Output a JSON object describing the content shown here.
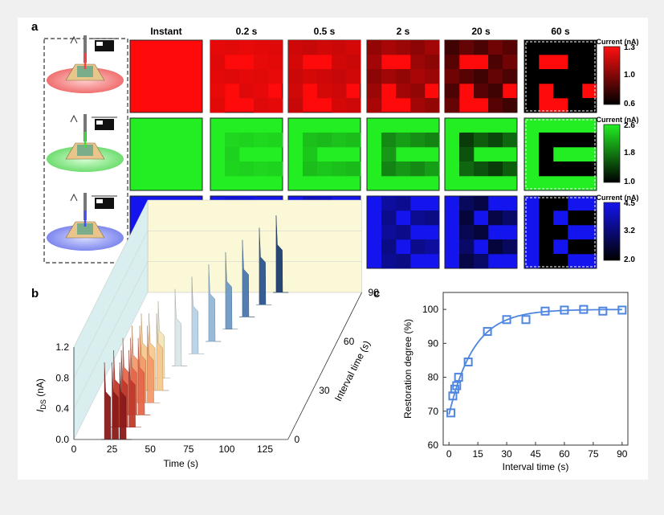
{
  "panel_a": {
    "label": "a",
    "columns": [
      "Instant",
      "0.2 s",
      "0.5 s",
      "2 s",
      "20 s",
      "60 s"
    ],
    "rows": [
      {
        "color_name": "red",
        "base": "#ff0a0a",
        "colorbar": {
          "title": "Current (nA)",
          "ticks": [
            "1.3",
            "1.0",
            "0.6"
          ],
          "top": "#ff1010",
          "bottom": "#000000"
        }
      },
      {
        "color_name": "green",
        "base": "#22ee22",
        "colorbar": {
          "title": "Current (nA)",
          "ticks": [
            "2.6",
            "1.8",
            "1.0"
          ],
          "top": "#22ee22",
          "bottom": "#000000"
        }
      },
      {
        "color_name": "blue",
        "base": "#1414ee",
        "colorbar": {
          "title": "Current (nA)",
          "ticks": [
            "4.5",
            "3.2",
            "2.0"
          ],
          "top": "#1414ee",
          "bottom": "#000000"
        }
      }
    ]
  },
  "chart_data": [
    {
      "panel": "b",
      "type": "area",
      "title": "",
      "xlabel": "Time (s)",
      "ylabel": "IDS (nA)",
      "ylabel_main": "I",
      "ylabel_sub": "DS",
      "ylabel_unit": " (nA)",
      "zlabel": "Interval time (s)",
      "xticks": [
        "0",
        "25",
        "50",
        "75",
        "100",
        "125"
      ],
      "yticks": [
        "0.0",
        "0.4",
        "0.8",
        "1.2"
      ],
      "zticks": [
        "0",
        "30",
        "60",
        "90"
      ],
      "xlim": [
        0,
        140
      ],
      "ylim": [
        0,
        1.2
      ],
      "zlim": [
        0,
        90
      ],
      "series_colors": [
        "#8b1a1a",
        "#c0392b",
        "#e8664a",
        "#f49a6a",
        "#f7c98f",
        "#f3e6b8",
        "#dbe6e8",
        "#b8d2e6",
        "#92b8d8",
        "#6d9ac6",
        "#4b78ad",
        "#2c5690",
        "#1c3d70"
      ]
    },
    {
      "panel": "c",
      "type": "scatter",
      "title": "",
      "xlabel": "Interval time (s)",
      "ylabel": "Restoration degree (%)",
      "x": [
        1,
        2,
        3,
        4,
        5,
        10,
        20,
        30,
        40,
        50,
        60,
        70,
        80,
        90
      ],
      "y": [
        69.5,
        74.5,
        76.5,
        77.5,
        80,
        84.5,
        93.5,
        97,
        97,
        99.5,
        99.8,
        100,
        99.5,
        99.8
      ],
      "fit_y0": 69,
      "fit_amplitude": 31,
      "fit_tau": 13,
      "xlim": [
        -3,
        93
      ],
      "ylim": [
        60,
        105
      ],
      "xticks": [
        0,
        15,
        30,
        45,
        60,
        75,
        90
      ],
      "yticks": [
        60,
        70,
        80,
        90,
        100
      ],
      "color": "#4f86e0"
    }
  ],
  "panel_b": {
    "label": "b"
  },
  "panel_c": {
    "label": "c"
  }
}
